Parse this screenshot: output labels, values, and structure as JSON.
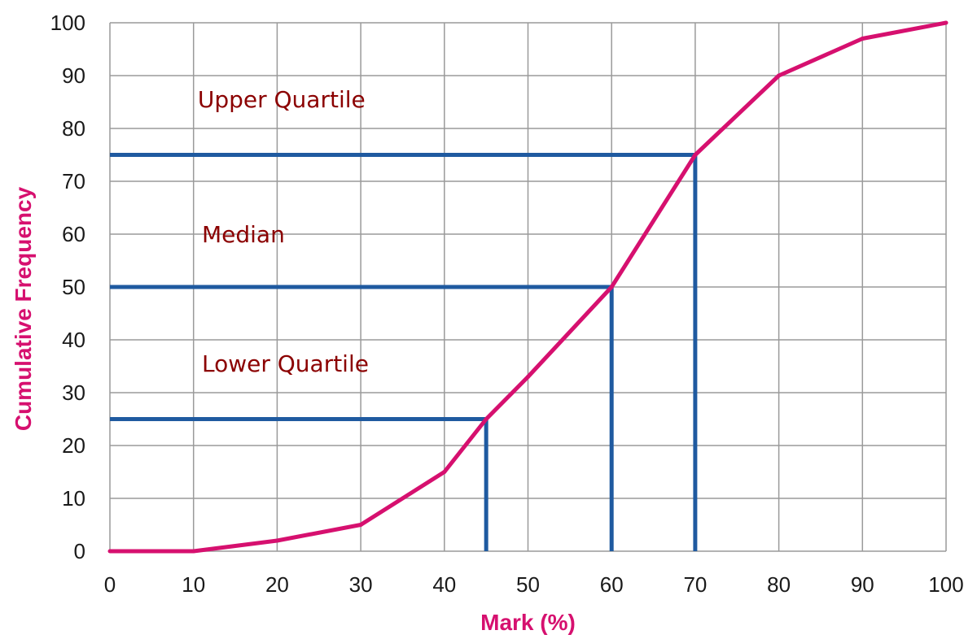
{
  "chart_data": {
    "type": "line",
    "title": "",
    "xlabel": "Mark (%)",
    "ylabel": "Cumulative Frequency",
    "xlim": [
      0,
      100
    ],
    "ylim": [
      0,
      100
    ],
    "x_ticks": [
      0,
      10,
      20,
      30,
      40,
      50,
      60,
      70,
      80,
      90,
      100
    ],
    "y_ticks": [
      0,
      10,
      20,
      30,
      40,
      50,
      60,
      70,
      80,
      90,
      100
    ],
    "grid": true,
    "series": [
      {
        "x": [
          0,
          10,
          20,
          30,
          40,
          45,
          50,
          60,
          70,
          80,
          90,
          100
        ],
        "y": [
          0,
          0,
          2,
          5,
          15,
          25,
          33,
          50,
          75,
          90,
          97,
          100
        ]
      }
    ],
    "reference_lines": [
      {
        "x": 45,
        "y": 25
      },
      {
        "x": 60,
        "y": 50
      },
      {
        "x": 70,
        "y": 75
      }
    ],
    "annotations": [
      {
        "text": "Upper Quartile",
        "x": 10.5,
        "y": 84
      },
      {
        "text": "Median",
        "x": 11,
        "y": 58.5
      },
      {
        "text": "Lower Quartile",
        "x": 11,
        "y": 34
      }
    ],
    "colors": {
      "curve": "#d6106f",
      "reference": "#1f5aa0",
      "grid": "#9a9a9a",
      "axis_title": "#d6106f",
      "annotation": "#8b0000"
    }
  }
}
